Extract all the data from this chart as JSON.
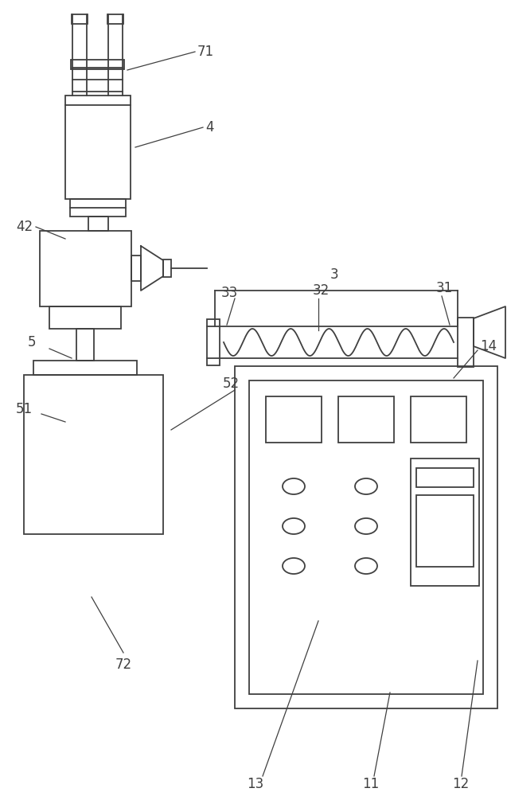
{
  "bg_color": "#ffffff",
  "line_color": "#404040",
  "fig_width": 6.37,
  "fig_height": 10.0,
  "lw": 1.3
}
